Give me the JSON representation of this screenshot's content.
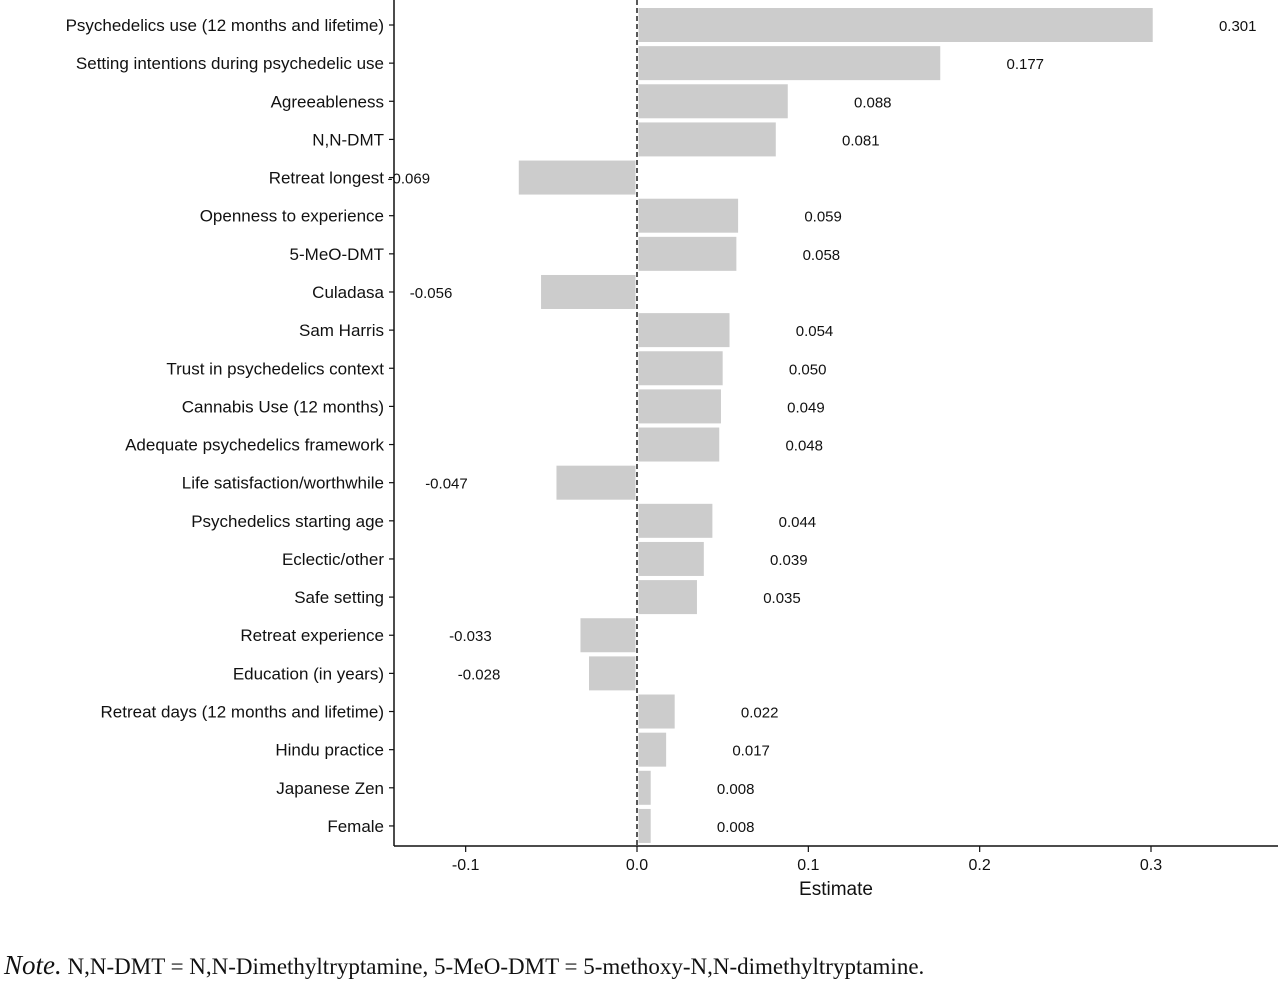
{
  "chart_data": {
    "type": "bar",
    "orientation": "horizontal",
    "xlabel": "Estimate",
    "ylabel": "",
    "xlim": [
      -0.14,
      0.37
    ],
    "xticks": [
      "-0.1",
      "0.0",
      "0.1",
      "0.2",
      "0.3"
    ],
    "xtick_values": [
      -0.1,
      0.0,
      0.1,
      0.2,
      0.3
    ],
    "bar_color": "#cccccc",
    "reference_line": {
      "x": 0,
      "style": "dashed"
    },
    "grid": false,
    "categories": [
      "Psychedelics use (12 months and lifetime)",
      "Setting intentions during psychedelic use",
      "Agreeableness",
      "N,N-DMT",
      "Retreat longest",
      "Openness to experience",
      "5-MeO-DMT",
      "Culadasa",
      "Sam Harris",
      "Trust in psychedelics context",
      "Cannabis Use (12 months)",
      "Adequate psychedelics framework",
      "Life satisfaction/worthwhile",
      "Psychedelics starting age",
      "Eclectic/other",
      "Safe setting",
      "Retreat experience",
      "Education (in years)",
      "Retreat days (12 months and lifetime)",
      "Hindu practice",
      "Japanese Zen",
      "Female"
    ],
    "values": [
      0.301,
      0.177,
      0.088,
      0.081,
      -0.069,
      0.059,
      0.058,
      -0.056,
      0.054,
      0.05,
      0.049,
      0.048,
      -0.047,
      0.044,
      0.039,
      0.035,
      -0.033,
      -0.028,
      0.022,
      0.017,
      0.008,
      0.008
    ],
    "value_labels": [
      "0.301",
      "0.177",
      "0.088",
      "0.081",
      "-0.069",
      "0.059",
      "0.058",
      "-0.056",
      "0.054",
      "0.050",
      "0.049",
      "0.048",
      "-0.047",
      "0.044",
      "0.039",
      "0.035",
      "-0.033",
      "-0.028",
      "0.022",
      "0.017",
      "0.008",
      "0.008"
    ]
  },
  "note": {
    "label": "Note.",
    "text": " N,N-DMT = N,N-Dimethyltryptamine, 5-MeO-DMT = 5-methoxy-N,N-dimethyltryptamine."
  }
}
